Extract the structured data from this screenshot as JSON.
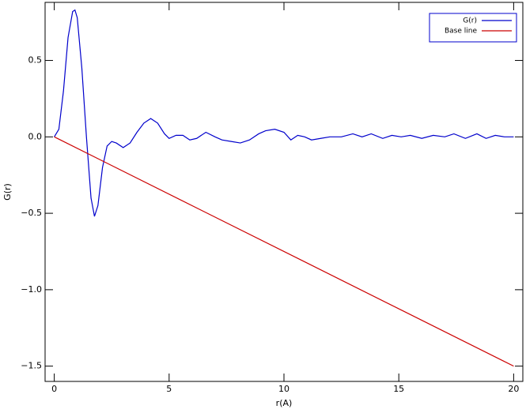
{
  "chart_data": {
    "type": "line",
    "xlabel": "r(A)",
    "ylabel": "G(r)",
    "xlim": [
      -0.4,
      20.4
    ],
    "ylim": [
      -1.6,
      0.88
    ],
    "xticks": [
      0,
      5,
      10,
      15,
      20
    ],
    "yticks": [
      {
        "value": 0.5,
        "label": "0.5"
      },
      {
        "value": 0,
        "label": "0.0"
      },
      {
        "value": -0.5,
        "label": "−0.5"
      },
      {
        "value": -1,
        "label": "−1.0"
      },
      {
        "value": -1.5,
        "label": "−1.5"
      }
    ],
    "legend": "upper right",
    "series": [
      {
        "name": "G(r)",
        "color": "#0000cc",
        "x": [
          0,
          0.2,
          0.4,
          0.6,
          0.8,
          0.9,
          1.0,
          1.2,
          1.4,
          1.6,
          1.75,
          1.9,
          2.1,
          2.3,
          2.5,
          2.7,
          3.0,
          3.3,
          3.6,
          3.9,
          4.2,
          4.5,
          4.8,
          5.0,
          5.3,
          5.6,
          5.9,
          6.2,
          6.6,
          7.0,
          7.3,
          7.7,
          8.1,
          8.5,
          8.9,
          9.2,
          9.6,
          10.0,
          10.3,
          10.6,
          10.9,
          11.2,
          11.6,
          12.0,
          12.5,
          13.0,
          13.4,
          13.8,
          14.3,
          14.7,
          15.1,
          15.5,
          16.0,
          16.5,
          17.0,
          17.4,
          17.9,
          18.4,
          18.8,
          19.2,
          19.6,
          20.0
        ],
        "values": [
          0,
          0.05,
          0.3,
          0.65,
          0.82,
          0.83,
          0.78,
          0.45,
          0.0,
          -0.4,
          -0.52,
          -0.45,
          -0.2,
          -0.06,
          -0.03,
          -0.04,
          -0.07,
          -0.04,
          0.03,
          0.09,
          0.12,
          0.09,
          0.02,
          -0.01,
          0.01,
          0.01,
          -0.02,
          -0.01,
          0.03,
          0.0,
          -0.02,
          -0.03,
          -0.04,
          -0.02,
          0.02,
          0.04,
          0.05,
          0.03,
          -0.02,
          0.01,
          0.0,
          -0.02,
          -0.01,
          0.0,
          0.0,
          0.02,
          0.0,
          0.02,
          -0.01,
          0.01,
          0.0,
          0.01,
          -0.01,
          0.01,
          0.0,
          0.02,
          -0.01,
          0.02,
          -0.01,
          0.01,
          0.0,
          0.0
        ]
      },
      {
        "name": "Base line",
        "color": "#cc0000",
        "x": [
          0,
          20
        ],
        "values": [
          0,
          -1.5
        ]
      }
    ]
  }
}
